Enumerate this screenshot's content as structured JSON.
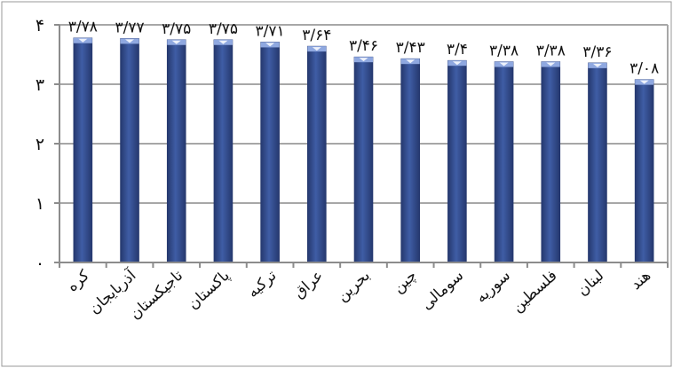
{
  "chart_data": {
    "type": "bar",
    "categories": [
      "کره",
      "آذربایجان",
      "تاجیکستان",
      "پاکستان",
      "ترکیه",
      "عراق",
      "بحرین",
      "چین",
      "سومالی",
      "سوریه",
      "فلسطین",
      "لبنان",
      "هند"
    ],
    "values": [
      3.78,
      3.77,
      3.75,
      3.75,
      3.71,
      3.64,
      3.46,
      3.43,
      3.4,
      3.38,
      3.38,
      3.36,
      3.08
    ],
    "data_labels": [
      "۳/۷۸",
      "۳/۷۷",
      "۳/۷۵",
      "۳/۷۵",
      "۳/۷۱",
      "۳/۶۴",
      "۳/۴۶",
      "۳/۴۳",
      "۳/۴",
      "۳/۳۸",
      "۳/۳۸",
      "۳/۳۶",
      "۳/۰۸"
    ],
    "y_ticks": [
      0,
      1,
      2,
      3,
      4
    ],
    "y_tick_labels": [
      "۰",
      "۱",
      "۲",
      "۳",
      "۴"
    ],
    "ylim": [
      0,
      4
    ],
    "title": "",
    "xlabel": "",
    "ylabel": "",
    "grid": true,
    "bar_color": "#3f5da5",
    "bar_dark_color": "#25386e",
    "bar_highlight_color": "#8fa8e0",
    "gridline_color": "#a7a7a7",
    "frame_color": "#8c8c8c"
  }
}
